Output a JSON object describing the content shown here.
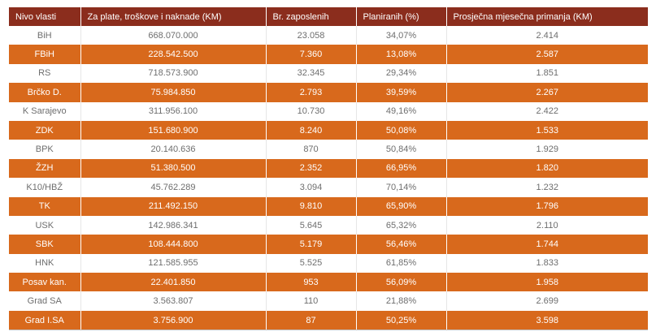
{
  "colors": {
    "header_bg": "#8b2d1d",
    "accent_orange": "#d8691c",
    "text_gray": "#6e6e6e"
  },
  "table": {
    "columns": [
      "Nivo vlasti",
      "Za plate, troškove i naknade (KM)",
      "Br. zaposlenih",
      "Planiranih (%)",
      "Prosječna mjesečna primanja (KM)"
    ],
    "rows": [
      [
        "BiH",
        "668.070.000",
        "23.058",
        "34,07%",
        "2.414"
      ],
      [
        "FBiH",
        "228.542.500",
        "7.360",
        "13,08%",
        "2.587"
      ],
      [
        "RS",
        "718.573.900",
        "32.345",
        "29,34%",
        "1.851"
      ],
      [
        "Brčko D.",
        "75.984.850",
        "2.793",
        "39,59%",
        "2.267"
      ],
      [
        "K Sarajevo",
        "311.956.100",
        "10.730",
        "49,16%",
        "2.422"
      ],
      [
        "ZDK",
        "151.680.900",
        "8.240",
        "50,08%",
        "1.533"
      ],
      [
        "BPK",
        "20.140.636",
        "870",
        "50,84%",
        "1.929"
      ],
      [
        "ŽZH",
        "51.380.500",
        "2.352",
        "66,95%",
        "1.820"
      ],
      [
        "K10/HBŽ",
        "45.762.289",
        "3.094",
        "70,14%",
        "1.232"
      ],
      [
        "TK",
        "211.492.150",
        "9.810",
        "65,90%",
        "1.796"
      ],
      [
        "USK",
        "142.986.341",
        "5.645",
        "65,32%",
        "2.110"
      ],
      [
        "SBK",
        "108.444.800",
        "5.179",
        "56,46%",
        "1.744"
      ],
      [
        "HNK",
        "121.585.955",
        "5.525",
        "61,85%",
        "1.833"
      ],
      [
        "Posav kan.",
        "22.401.850",
        "953",
        "56,09%",
        "1.958"
      ],
      [
        "Grad SA",
        "3.563.807",
        "110",
        "21,88%",
        "2.699"
      ],
      [
        "Grad I.SA",
        "3.756.900",
        "87",
        "50,25%",
        "3.598"
      ]
    ]
  }
}
